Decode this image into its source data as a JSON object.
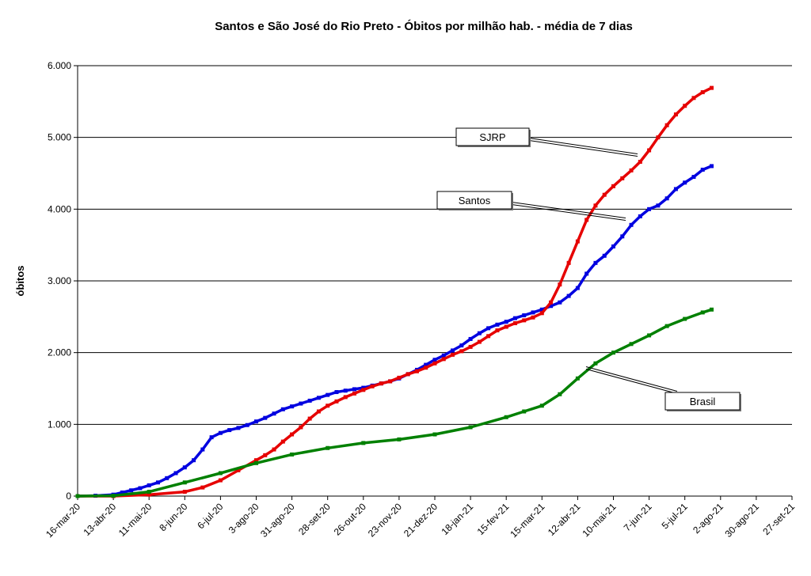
{
  "chart_data": {
    "type": "line",
    "title": "Santos e São José do Rio Preto - Óbitos por milhão hab. - média de 7 dias",
    "xlabel": "",
    "ylabel": "óbitos",
    "ylim": [
      0,
      6000
    ],
    "yticks": [
      "0",
      "1.000",
      "2.000",
      "3.000",
      "4.000",
      "5.000",
      "6.000"
    ],
    "ytick_values": [
      0,
      1000,
      2000,
      3000,
      4000,
      5000,
      6000
    ],
    "xlim": [
      "2020-03-16",
      "2021-09-27"
    ],
    "xticks": [
      "16-mar-20",
      "13-abr-20",
      "11-mai-20",
      "8-jun-20",
      "6-jul-20",
      "3-ago-20",
      "31-ago-20",
      "28-set-20",
      "26-out-20",
      "23-nov-20",
      "21-dez-20",
      "18-jan-21",
      "15-fev-21",
      "15-mar-21",
      "12-abr-21",
      "10-mai-21",
      "7-jun-21",
      "5-jul-21",
      "2-ago-21",
      "30-ago-21",
      "27-set-21"
    ],
    "xtick_dates": [
      "2020-03-16",
      "2020-04-13",
      "2020-05-11",
      "2020-06-08",
      "2020-07-06",
      "2020-08-03",
      "2020-08-31",
      "2020-09-28",
      "2020-10-26",
      "2020-11-23",
      "2020-12-21",
      "2021-01-18",
      "2021-02-15",
      "2021-03-15",
      "2021-04-12",
      "2021-05-10",
      "2021-06-07",
      "2021-07-05",
      "2021-08-02",
      "2021-08-30",
      "2021-09-27"
    ],
    "grid": "horizontal",
    "series": [
      {
        "name": "Santos",
        "color": "#0000e0",
        "points": [
          [
            "2020-03-16",
            0
          ],
          [
            "2020-03-30",
            5
          ],
          [
            "2020-04-13",
            20
          ],
          [
            "2020-04-20",
            50
          ],
          [
            "2020-04-27",
            80
          ],
          [
            "2020-05-04",
            110
          ],
          [
            "2020-05-11",
            150
          ],
          [
            "2020-05-18",
            190
          ],
          [
            "2020-05-25",
            250
          ],
          [
            "2020-06-01",
            320
          ],
          [
            "2020-06-08",
            400
          ],
          [
            "2020-06-15",
            500
          ],
          [
            "2020-06-22",
            650
          ],
          [
            "2020-06-29",
            820
          ],
          [
            "2020-07-06",
            880
          ],
          [
            "2020-07-13",
            920
          ],
          [
            "2020-07-20",
            950
          ],
          [
            "2020-07-27",
            990
          ],
          [
            "2020-08-03",
            1040
          ],
          [
            "2020-08-10",
            1090
          ],
          [
            "2020-08-17",
            1150
          ],
          [
            "2020-08-24",
            1210
          ],
          [
            "2020-08-31",
            1250
          ],
          [
            "2020-09-07",
            1290
          ],
          [
            "2020-09-14",
            1330
          ],
          [
            "2020-09-21",
            1370
          ],
          [
            "2020-09-28",
            1410
          ],
          [
            "2020-10-05",
            1450
          ],
          [
            "2020-10-12",
            1470
          ],
          [
            "2020-10-19",
            1490
          ],
          [
            "2020-10-26",
            1510
          ],
          [
            "2020-11-02",
            1540
          ],
          [
            "2020-11-09",
            1570
          ],
          [
            "2020-11-16",
            1600
          ],
          [
            "2020-11-23",
            1640
          ],
          [
            "2020-11-30",
            1700
          ],
          [
            "2020-12-07",
            1760
          ],
          [
            "2020-12-14",
            1830
          ],
          [
            "2020-12-21",
            1900
          ],
          [
            "2020-12-28",
            1960
          ],
          [
            "2021-01-04",
            2030
          ],
          [
            "2021-01-11",
            2100
          ],
          [
            "2021-01-18",
            2190
          ],
          [
            "2021-01-25",
            2270
          ],
          [
            "2021-02-01",
            2340
          ],
          [
            "2021-02-08",
            2390
          ],
          [
            "2021-02-15",
            2430
          ],
          [
            "2021-02-22",
            2480
          ],
          [
            "2021-03-01",
            2520
          ],
          [
            "2021-03-08",
            2560
          ],
          [
            "2021-03-15",
            2600
          ],
          [
            "2021-03-22",
            2650
          ],
          [
            "2021-03-29",
            2700
          ],
          [
            "2021-04-05",
            2790
          ],
          [
            "2021-04-12",
            2900
          ],
          [
            "2021-04-19",
            3100
          ],
          [
            "2021-04-26",
            3250
          ],
          [
            "2021-05-03",
            3350
          ],
          [
            "2021-05-10",
            3480
          ],
          [
            "2021-05-17",
            3620
          ],
          [
            "2021-05-24",
            3780
          ],
          [
            "2021-05-31",
            3900
          ],
          [
            "2021-06-07",
            4000
          ],
          [
            "2021-06-14",
            4050
          ],
          [
            "2021-06-21",
            4150
          ],
          [
            "2021-06-28",
            4280
          ],
          [
            "2021-07-05",
            4370
          ],
          [
            "2021-07-12",
            4450
          ],
          [
            "2021-07-19",
            4550
          ],
          [
            "2021-07-26",
            4600
          ]
        ]
      },
      {
        "name": "SJRP",
        "color": "#e60000",
        "points": [
          [
            "2020-03-16",
            0
          ],
          [
            "2020-04-13",
            0
          ],
          [
            "2020-05-11",
            20
          ],
          [
            "2020-06-08",
            60
          ],
          [
            "2020-06-22",
            120
          ],
          [
            "2020-07-06",
            220
          ],
          [
            "2020-07-20",
            360
          ],
          [
            "2020-08-03",
            500
          ],
          [
            "2020-08-10",
            570
          ],
          [
            "2020-08-17",
            650
          ],
          [
            "2020-08-24",
            760
          ],
          [
            "2020-08-31",
            860
          ],
          [
            "2020-09-07",
            960
          ],
          [
            "2020-09-14",
            1080
          ],
          [
            "2020-09-21",
            1180
          ],
          [
            "2020-09-28",
            1260
          ],
          [
            "2020-10-05",
            1320
          ],
          [
            "2020-10-12",
            1380
          ],
          [
            "2020-10-19",
            1430
          ],
          [
            "2020-10-26",
            1480
          ],
          [
            "2020-11-02",
            1530
          ],
          [
            "2020-11-09",
            1570
          ],
          [
            "2020-11-16",
            1600
          ],
          [
            "2020-11-23",
            1650
          ],
          [
            "2020-11-30",
            1700
          ],
          [
            "2020-12-07",
            1740
          ],
          [
            "2020-12-14",
            1790
          ],
          [
            "2020-12-21",
            1850
          ],
          [
            "2020-12-28",
            1910
          ],
          [
            "2021-01-04",
            1970
          ],
          [
            "2021-01-11",
            2020
          ],
          [
            "2021-01-18",
            2080
          ],
          [
            "2021-01-25",
            2150
          ],
          [
            "2021-02-01",
            2230
          ],
          [
            "2021-02-08",
            2310
          ],
          [
            "2021-02-15",
            2360
          ],
          [
            "2021-02-22",
            2410
          ],
          [
            "2021-03-01",
            2450
          ],
          [
            "2021-03-08",
            2490
          ],
          [
            "2021-03-15",
            2550
          ],
          [
            "2021-03-22",
            2700
          ],
          [
            "2021-03-29",
            2950
          ],
          [
            "2021-04-05",
            3250
          ],
          [
            "2021-04-12",
            3550
          ],
          [
            "2021-04-19",
            3850
          ],
          [
            "2021-04-26",
            4050
          ],
          [
            "2021-05-03",
            4200
          ],
          [
            "2021-05-10",
            4320
          ],
          [
            "2021-05-17",
            4430
          ],
          [
            "2021-05-24",
            4540
          ],
          [
            "2021-05-31",
            4660
          ],
          [
            "2021-06-07",
            4820
          ],
          [
            "2021-06-14",
            5000
          ],
          [
            "2021-06-21",
            5170
          ],
          [
            "2021-06-28",
            5320
          ],
          [
            "2021-07-05",
            5440
          ],
          [
            "2021-07-12",
            5550
          ],
          [
            "2021-07-19",
            5630
          ],
          [
            "2021-07-26",
            5690
          ]
        ]
      },
      {
        "name": "Brasil",
        "color": "#008000",
        "points": [
          [
            "2020-03-16",
            0
          ],
          [
            "2020-04-13",
            5
          ],
          [
            "2020-05-11",
            60
          ],
          [
            "2020-06-08",
            190
          ],
          [
            "2020-07-06",
            320
          ],
          [
            "2020-08-03",
            460
          ],
          [
            "2020-08-31",
            580
          ],
          [
            "2020-09-28",
            670
          ],
          [
            "2020-10-26",
            740
          ],
          [
            "2020-11-23",
            790
          ],
          [
            "2020-12-21",
            860
          ],
          [
            "2021-01-18",
            960
          ],
          [
            "2021-02-15",
            1100
          ],
          [
            "2021-03-01",
            1180
          ],
          [
            "2021-03-15",
            1260
          ],
          [
            "2021-03-29",
            1420
          ],
          [
            "2021-04-12",
            1640
          ],
          [
            "2021-04-26",
            1850
          ],
          [
            "2021-05-10",
            2000
          ],
          [
            "2021-05-24",
            2120
          ],
          [
            "2021-06-07",
            2240
          ],
          [
            "2021-06-21",
            2370
          ],
          [
            "2021-07-05",
            2470
          ],
          [
            "2021-07-19",
            2560
          ],
          [
            "2021-07-26",
            2600
          ]
        ]
      }
    ],
    "annotations": [
      {
        "text": "SJRP",
        "series": "SJRP"
      },
      {
        "text": "Santos",
        "series": "Santos"
      },
      {
        "text": "Brasil",
        "series": "Brasil"
      }
    ]
  }
}
